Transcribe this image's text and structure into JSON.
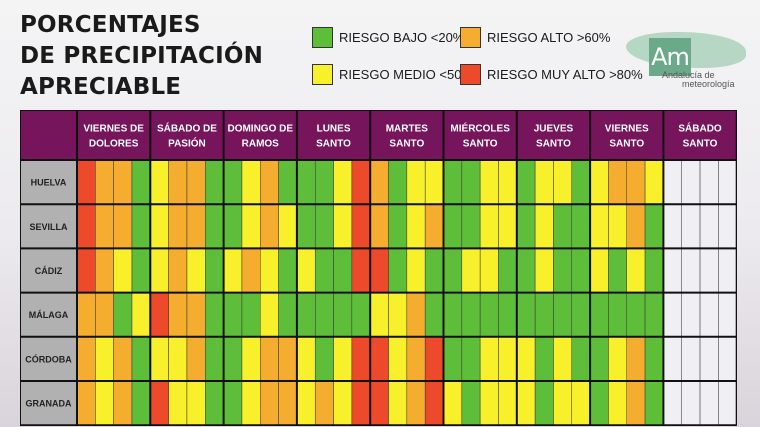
{
  "title": {
    "line1": "PORCENTAJES",
    "line2": "DE PRECIPITACIÓN",
    "line3": "APRECIABLE"
  },
  "legend": [
    {
      "label": "RIESGO BAJO <20%",
      "color": "#5ebe3a"
    },
    {
      "label": "RIESGO ALTO >60%",
      "color": "#f5ad2f"
    },
    {
      "label": "RIESGO MEDIO <50%",
      "color": "#f8f02a"
    },
    {
      "label": "RIESGO MUY ALTO >80%",
      "color": "#ed4a2c"
    }
  ],
  "logo": {
    "mark": "Am",
    "line1": "Andalucía de",
    "line2": "meteorología"
  },
  "colors": {
    "header": "#76155c",
    "row_label": "#b1b1b1",
    "empty": "#f0f0f4",
    "grid_line": "#111111"
  },
  "chart_data": {
    "type": "heatmap",
    "title": "PORCENTAJES DE PRECIPITACIÓN APRECIABLE",
    "days": [
      "VIERNES DE DOLORES",
      "SÁBADO DE PASIÓN",
      "DOMINGO DE RAMOS",
      "LUNES SANTO",
      "MARTES SANTO",
      "MIÉRCOLES SANTO",
      "JUEVES SANTO",
      "VIERNES SANTO",
      "SÁBADO SANTO"
    ],
    "periods_per_day": 4,
    "provinces": [
      "HUELVA",
      "SEVILLA",
      "CÁDIZ",
      "MÁLAGA",
      "CÓRDOBA",
      "GRANADA"
    ],
    "levels": [
      "RIESGO BAJO <20%",
      "RIESGO MEDIO <50%",
      "RIESGO ALTO >60%",
      "RIESGO MUY ALTO >80%"
    ],
    "risk": [
      [
        "MA",
        "A",
        "A",
        "B",
        "M",
        "A",
        "A",
        "B",
        "B",
        "M",
        "A",
        "B",
        "B",
        "B",
        "M",
        "MA",
        "A",
        "B",
        "M",
        "M",
        "B",
        "B",
        "M",
        "M",
        "B",
        "M",
        "M",
        "B",
        "M",
        "A",
        "A",
        "M",
        "",
        "",
        "",
        ""
      ],
      [
        "MA",
        "A",
        "A",
        "B",
        "M",
        "A",
        "A",
        "B",
        "B",
        "M",
        "A",
        "M",
        "B",
        "B",
        "M",
        "MA",
        "A",
        "B",
        "M",
        "A",
        "B",
        "B",
        "M",
        "M",
        "B",
        "M",
        "B",
        "B",
        "M",
        "M",
        "A",
        "B",
        "",
        "",
        "",
        ""
      ],
      [
        "MA",
        "A",
        "M",
        "B",
        "M",
        "A",
        "M",
        "B",
        "M",
        "A",
        "M",
        "B",
        "M",
        "B",
        "B",
        "MA",
        "MA",
        "B",
        "M",
        "B",
        "B",
        "M",
        "M",
        "B",
        "B",
        "M",
        "B",
        "B",
        "M",
        "B",
        "M",
        "B",
        "",
        "",
        "",
        ""
      ],
      [
        "A",
        "A",
        "B",
        "M",
        "MA",
        "A",
        "A",
        "B",
        "B",
        "B",
        "M",
        "B",
        "B",
        "B",
        "B",
        "B",
        "M",
        "M",
        "A",
        "B",
        "B",
        "B",
        "B",
        "B",
        "B",
        "B",
        "B",
        "B",
        "B",
        "B",
        "B",
        "B",
        "",
        "",
        "",
        ""
      ],
      [
        "A",
        "M",
        "A",
        "B",
        "M",
        "M",
        "A",
        "B",
        "B",
        "M",
        "A",
        "A",
        "M",
        "B",
        "M",
        "MA",
        "MA",
        "M",
        "A",
        "MA",
        "B",
        "B",
        "M",
        "M",
        "M",
        "B",
        "M",
        "B",
        "B",
        "M",
        "A",
        "B",
        "",
        "",
        "",
        ""
      ],
      [
        "A",
        "M",
        "A",
        "B",
        "MA",
        "M",
        "M",
        "B",
        "B",
        "M",
        "A",
        "A",
        "M",
        "A",
        "M",
        "MA",
        "MA",
        "M",
        "A",
        "MA",
        "M",
        "B",
        "M",
        "M",
        "M",
        "B",
        "M",
        "M",
        "B",
        "M",
        "A",
        "B",
        "",
        "",
        "",
        ""
      ]
    ]
  }
}
